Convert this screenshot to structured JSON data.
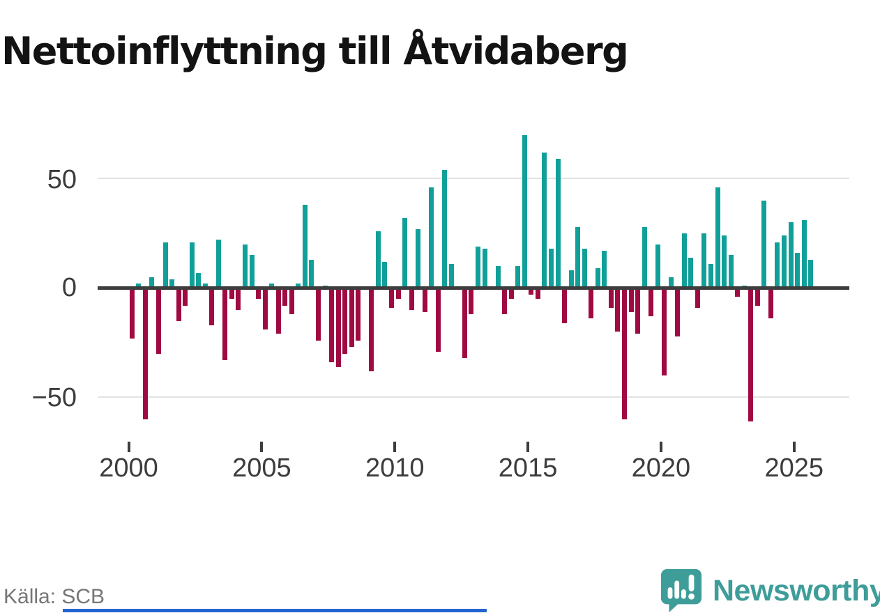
{
  "title": "Nettoinflyttning till Åtvidaberg",
  "source": "Källa: SCB",
  "branding": {
    "name": "Newsworthy",
    "logo_icon": "bar-chart-speech-bubble-icon",
    "color": "#3e9d99"
  },
  "chart_data": {
    "type": "bar",
    "title": "Nettoinflyttning till Åtvidaberg",
    "frequency": "quarterly",
    "start_period": "2000 Q1",
    "end_period": "2025 Q3",
    "x_tick_labels": [
      "2000",
      "2005",
      "2010",
      "2015",
      "2020",
      "2025"
    ],
    "y_ticks": [
      50,
      0,
      -50
    ],
    "y_tick_labels": [
      "50",
      "0",
      "−50"
    ],
    "ylim": [
      -65,
      75
    ],
    "grid": "horizontal",
    "legend": "none",
    "positive_color": "#10a099",
    "negative_color": "#a00a42",
    "values": [
      -23,
      2,
      -60,
      5,
      -30,
      21,
      4,
      -15,
      -8,
      21,
      7,
      2,
      -17,
      22,
      -33,
      -5,
      -10,
      20,
      15,
      -5,
      -19,
      2,
      -21,
      -8,
      -12,
      2,
      38,
      13,
      -24,
      1,
      -34,
      -36,
      -30,
      -27,
      -24,
      0,
      -38,
      26,
      12,
      -9,
      -5,
      32,
      -10,
      27,
      -11,
      46,
      -29,
      54,
      11,
      0,
      -32,
      -12,
      19,
      18,
      0,
      10,
      -12,
      -5,
      10,
      70,
      -3,
      -5,
      62,
      18,
      59,
      -16,
      8,
      28,
      18,
      -14,
      9,
      17,
      -9,
      -20,
      -60,
      -11,
      -21,
      28,
      -13,
      20,
      -40,
      5,
      -22,
      25,
      14,
      -9,
      25,
      11,
      46,
      24,
      15,
      -4,
      1,
      -61,
      -8,
      40,
      -14,
      21,
      24,
      30,
      16,
      31,
      13
    ]
  }
}
